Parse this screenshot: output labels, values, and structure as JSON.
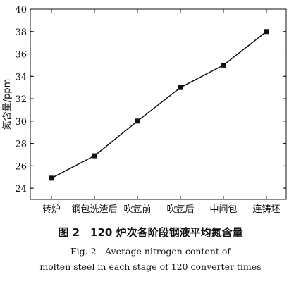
{
  "chart_data": {
    "type": "line",
    "categories": [
      "转炉",
      "钢包洗渣后",
      "吹氩前",
      "吹氩后",
      "中间包",
      "连铸坯"
    ],
    "series": [
      {
        "values": [
          24.9,
          26.9,
          30.0,
          33.0,
          35.0,
          38.0
        ]
      }
    ],
    "xlabel": "",
    "ylabel": "氮含量/ppm",
    "ylim": [
      23,
      40
    ],
    "yticks": [
      24,
      26,
      28,
      30,
      32,
      34,
      36,
      38,
      40
    ],
    "grid": false,
    "marker": "square",
    "line_color": "#111111"
  },
  "caption": {
    "zh": "图 2　120 炉次各阶段钢液平均氮含量",
    "en_line1": "Fig. 2　Average nitrogen content of",
    "en_line2": "molten steel in each stage of 120 converter times"
  }
}
